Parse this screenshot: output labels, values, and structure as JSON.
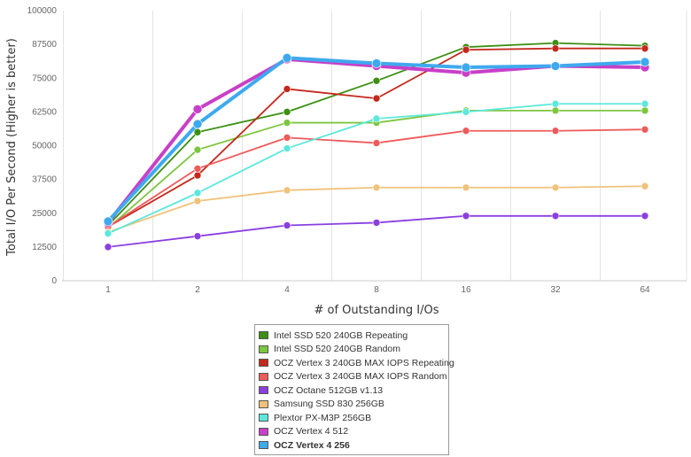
{
  "chart_data": {
    "type": "line",
    "title": "",
    "xlabel": "# of Outstanding I/Os",
    "ylabel": "Total I/O Per Second (Higher is better)",
    "categories": [
      "1",
      "2",
      "4",
      "8",
      "16",
      "32",
      "64"
    ],
    "y_ticks": [
      "0",
      "12500",
      "25000",
      "37500",
      "50000",
      "62500",
      "75000",
      "87500",
      "100000"
    ],
    "ylim": [
      0,
      100000
    ],
    "grid": "vertical",
    "legend_position": "bottom",
    "series": [
      {
        "name": "Intel SSD 520 240GB Repeating",
        "color": "#3d8f12",
        "values": [
          20500,
          55000,
          62500,
          74000,
          86500,
          88000,
          87000
        ]
      },
      {
        "name": "Intel SSD 520 240GB Random",
        "color": "#7dc63f",
        "values": [
          19500,
          48500,
          58500,
          58500,
          63000,
          63000,
          63000
        ]
      },
      {
        "name": "OCZ Vertex 3 240GB MAX IOPS Repeating",
        "color": "#c4281c",
        "values": [
          20000,
          39000,
          71000,
          67500,
          85500,
          86000,
          86000
        ]
      },
      {
        "name": "OCZ Vertex 3 240GB MAX IOPS Random",
        "color": "#ef5a5a",
        "values": [
          20000,
          41500,
          53000,
          51000,
          55500,
          55500,
          56000
        ]
      },
      {
        "name": "OCZ Octane 512GB v1.13",
        "color": "#8a3fe0",
        "values": [
          12500,
          16500,
          20500,
          21500,
          24000,
          24000,
          24000
        ]
      },
      {
        "name": "Samsung SSD 830 256GB",
        "color": "#f0c27b",
        "values": [
          18000,
          29500,
          33500,
          34500,
          34500,
          34500,
          35000
        ]
      },
      {
        "name": "Plextor PX-M3P 256GB",
        "color": "#5ce8dc",
        "values": [
          17500,
          32500,
          49000,
          60000,
          62500,
          65500,
          65500
        ]
      },
      {
        "name": "OCZ Vertex 4 512",
        "color": "#c83fc8",
        "values": [
          21500,
          63500,
          82000,
          79500,
          77000,
          79500,
          79000
        ]
      },
      {
        "name": "OCZ Vertex 4 256",
        "color": "#3fa9ee",
        "values": [
          22000,
          58000,
          82500,
          80500,
          79000,
          79500,
          81000
        ]
      }
    ]
  }
}
